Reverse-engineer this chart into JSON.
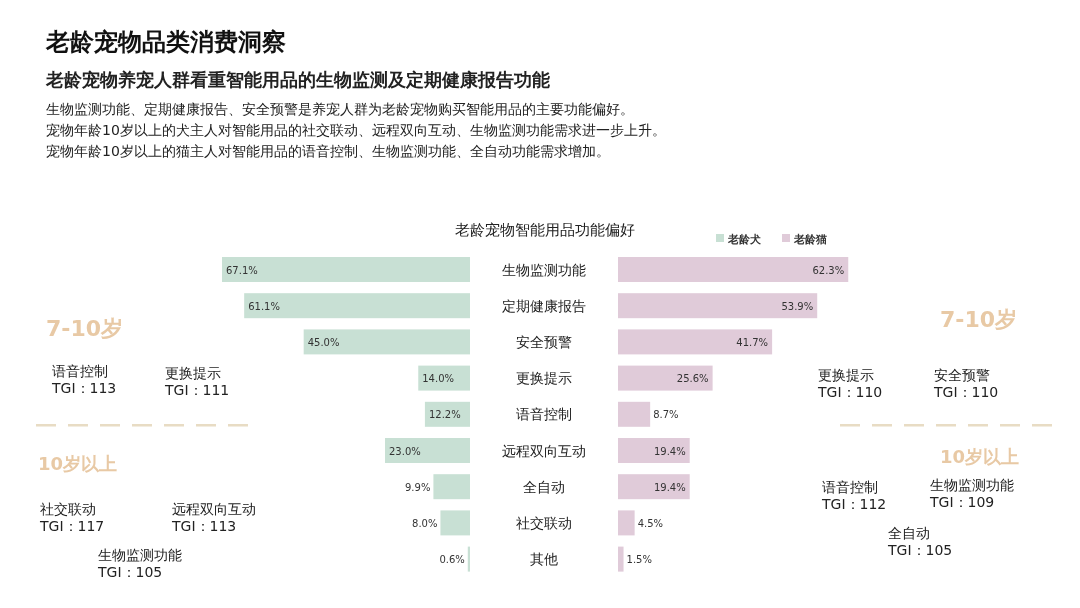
{
  "chart_data": [
    {
      "type": "bar",
      "orientation": "horizontal",
      "title": "老龄宠物品类消费洞察",
      "subtitle": "老龄宠物养宠人群看重智能用品的生物监测及定期健康报告功能",
      "categories": [
        "生物监测功能",
        "定期健康报告",
        "安全预警",
        "更换提示",
        "语音控制",
        "远程双向互动",
        "全自动",
        "社交联动",
        "其他"
      ],
      "series": [
        {
          "name": "老龄犬",
          "color": "#c8e0d4",
          "values": [
            67.1,
            61.1,
            45.0,
            14.0,
            12.2,
            23.0,
            9.9,
            8.0,
            0.6
          ],
          "value_labels": [
            "67.1%",
            "61.1%",
            "45.0%",
            "14.0%",
            "12.2%",
            "23.0%",
            "9.9%",
            "8.0%",
            "0.6%"
          ]
        }
      ],
      "legend": "top right",
      "annotations": [
        "生物监测功能、定期健康报告、安全预警是养宠人群为老龄宠物购买智能用品的主要功能偏好。",
        "宠物年龄10岁以上的犬主人对智能用品的社交联动、远程双向互动、生物监测功能需求进一步上升。",
        "宠物年龄10岁以上的猫主人对智能用品的语音控制、生物监测功能、全自动功能需求增加。",
        "老龄宠物智能用品功能偏好",
        "7-10岁",
        "语音控制\nTGI：113",
        "更换提示\nTGI：111",
        "10岁以上",
        "社交联动\nTGI：117",
        "远程双向互动\nTGI：113",
        "生物监测功能\nTGI：105"
      ]
    },
    {
      "type": "bar",
      "orientation": "horizontal",
      "categories": [
        null,
        null,
        null,
        null,
        null,
        null,
        null,
        null,
        null
      ],
      "series": [
        {
          "name": "老龄猫",
          "color": "#e0cbd9",
          "values": [
            62.3,
            53.9,
            41.7,
            25.6,
            8.7,
            19.4,
            19.4,
            4.5,
            1.5
          ],
          "value_labels": [
            "62.3%",
            "53.9%",
            "41.7%",
            "25.6%",
            "8.7%",
            "19.4%",
            "19.4%",
            "4.5%",
            "1.5%"
          ]
        }
      ],
      "legend": "top right",
      "annotations": [
        "7-10岁",
        "更换提示\nTGI：110",
        "安全预警\nTGI：110",
        "10岁以上",
        "语音控制\nTGI：112",
        "生物监测功能\nTGI：109",
        "全自动\nTGI：105"
      ]
    }
  ]
}
